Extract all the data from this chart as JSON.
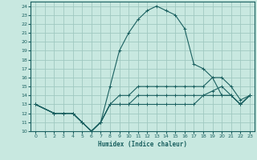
{
  "xlabel": "Humidex (Indice chaleur)",
  "bg_color": "#c8e8e0",
  "grid_color": "#a0c8c0",
  "line_color": "#1a6060",
  "xlim": [
    -0.5,
    23.5
  ],
  "ylim": [
    10,
    24.5
  ],
  "xticks": [
    0,
    1,
    2,
    3,
    4,
    5,
    6,
    7,
    8,
    9,
    10,
    11,
    12,
    13,
    14,
    15,
    16,
    17,
    18,
    19,
    20,
    21,
    22,
    23
  ],
  "yticks": [
    10,
    11,
    12,
    13,
    14,
    15,
    16,
    17,
    18,
    19,
    20,
    21,
    22,
    23,
    24
  ],
  "lines": [
    {
      "x": [
        0,
        2,
        3,
        4,
        5,
        6,
        7,
        8,
        9,
        10,
        11,
        12,
        13,
        14,
        15,
        16,
        17,
        18,
        19,
        20,
        21,
        22,
        23
      ],
      "y": [
        13,
        12,
        12,
        12,
        11,
        10,
        11,
        15,
        19,
        21,
        22.5,
        23.5,
        24,
        23.5,
        23,
        21.5,
        17.5,
        17,
        16,
        14,
        14,
        13,
        14
      ]
    },
    {
      "x": [
        0,
        2,
        3,
        4,
        5,
        6,
        7,
        8,
        9,
        10,
        11,
        12,
        13,
        14,
        15,
        16,
        17,
        18,
        19,
        20,
        21,
        22,
        23
      ],
      "y": [
        13,
        12,
        12,
        12,
        11,
        10,
        11,
        13,
        14,
        14,
        15,
        15,
        15,
        15,
        15,
        15,
        15,
        15,
        16,
        16,
        15,
        13.5,
        14
      ]
    },
    {
      "x": [
        0,
        2,
        3,
        4,
        5,
        6,
        7,
        8,
        9,
        10,
        11,
        12,
        13,
        14,
        15,
        16,
        17,
        18,
        19,
        20,
        21,
        22,
        23
      ],
      "y": [
        13,
        12,
        12,
        12,
        11,
        10,
        11,
        13,
        13,
        13,
        14,
        14,
        14,
        14,
        14,
        14,
        14,
        14,
        14.5,
        15,
        14,
        13,
        14
      ]
    },
    {
      "x": [
        0,
        2,
        3,
        4,
        5,
        6,
        7,
        8,
        9,
        10,
        11,
        12,
        13,
        14,
        15,
        16,
        17,
        18,
        19,
        20,
        21,
        22,
        23
      ],
      "y": [
        13,
        12,
        12,
        12,
        11,
        10,
        11,
        13,
        13,
        13,
        13,
        13,
        13,
        13,
        13,
        13,
        13,
        14,
        14,
        14,
        14,
        13,
        14
      ]
    }
  ]
}
